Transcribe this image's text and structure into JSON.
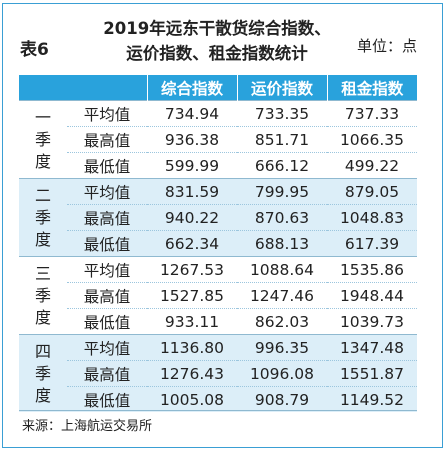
{
  "header": {
    "table_no": "表6",
    "title_line1": "2019年远东干散货综合指数、",
    "title_line2": "运价指数、租金指数统计",
    "unit": "单位：点"
  },
  "columns": [
    "综合指数",
    "运价指数",
    "租金指数"
  ],
  "quarters": [
    {
      "label": "一季度",
      "rows": [
        {
          "label": "平均值",
          "values": [
            "734.94",
            "733.35",
            "737.33"
          ]
        },
        {
          "label": "最高值",
          "values": [
            "936.38",
            "851.71",
            "1066.35"
          ]
        },
        {
          "label": "最低值",
          "values": [
            "599.99",
            "666.12",
            "499.22"
          ]
        }
      ]
    },
    {
      "label": "二季度",
      "rows": [
        {
          "label": "平均值",
          "values": [
            "831.59",
            "799.95",
            "879.05"
          ]
        },
        {
          "label": "最高值",
          "values": [
            "940.22",
            "870.63",
            "1048.83"
          ]
        },
        {
          "label": "最低值",
          "values": [
            "662.34",
            "688.13",
            "617.39"
          ]
        }
      ]
    },
    {
      "label": "三季度",
      "rows": [
        {
          "label": "平均值",
          "values": [
            "1267.53",
            "1088.64",
            "1535.86"
          ]
        },
        {
          "label": "最高值",
          "values": [
            "1527.85",
            "1247.46",
            "1948.44"
          ]
        },
        {
          "label": "最低值",
          "values": [
            "933.11",
            "862.03",
            "1039.73"
          ]
        }
      ]
    },
    {
      "label": "四季度",
      "rows": [
        {
          "label": "平均值",
          "values": [
            "1136.80",
            "996.35",
            "1347.48"
          ]
        },
        {
          "label": "最高值",
          "values": [
            "1276.43",
            "1096.08",
            "1551.87"
          ]
        },
        {
          "label": "最低值",
          "values": [
            "1005.08",
            "908.79",
            "1149.52"
          ]
        }
      ]
    }
  ],
  "source": "来源：上海航运交易所",
  "colors": {
    "header_bg": "#29a2dc",
    "alt_bg": "#dceef8",
    "frame": "#3a9fd4"
  }
}
